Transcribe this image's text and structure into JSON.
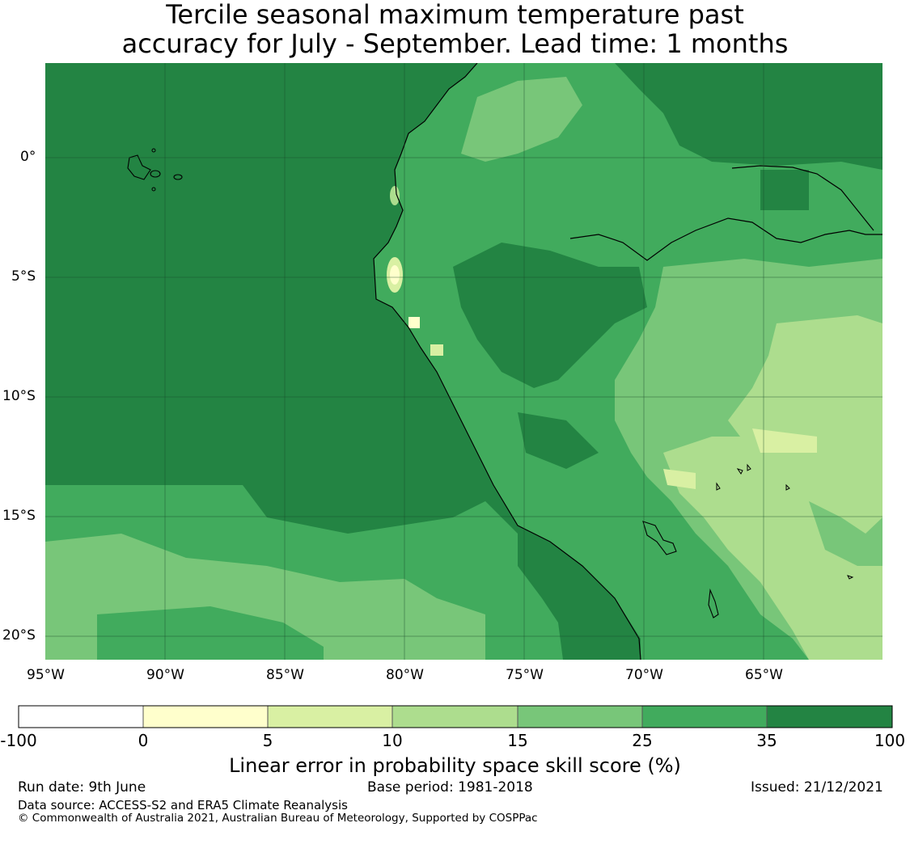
{
  "title_line1": "Tercile seasonal maximum temperature past",
  "title_line2": "accuracy for July - September. Lead time: 1 months",
  "map": {
    "lon_ticks": [
      "95°W",
      "90°W",
      "85°W",
      "80°W",
      "75°W",
      "70°W",
      "65°W"
    ],
    "lat_ticks": [
      "0°",
      "5°S",
      "10°S",
      "15°S",
      "20°S"
    ]
  },
  "colorbar": {
    "title": "Linear error in probability space skill score (%)",
    "ticks": [
      "-100",
      "0",
      "5",
      "10",
      "15",
      "25",
      "35",
      "100"
    ],
    "colors": [
      "#ffffff",
      "#ffffcc",
      "#d9f0a3",
      "#addd8e",
      "#78c679",
      "#41ab5d",
      "#238443"
    ]
  },
  "footer": {
    "run_date": "Run date: 9th June",
    "base_period": "Base period: 1981-2018",
    "issued": "Issued: 21/12/2021",
    "data_source": "Data source: ACCESS-S2 and ERA5 Climate Reanalysis",
    "copyright": "© Commonwealth of Australia 2021, Australian Bureau of Meteorology, Supported by COSPPac"
  },
  "colors": {
    "ocean": "#238443",
    "coast": "#000000",
    "grid": "#1a4a2a"
  }
}
